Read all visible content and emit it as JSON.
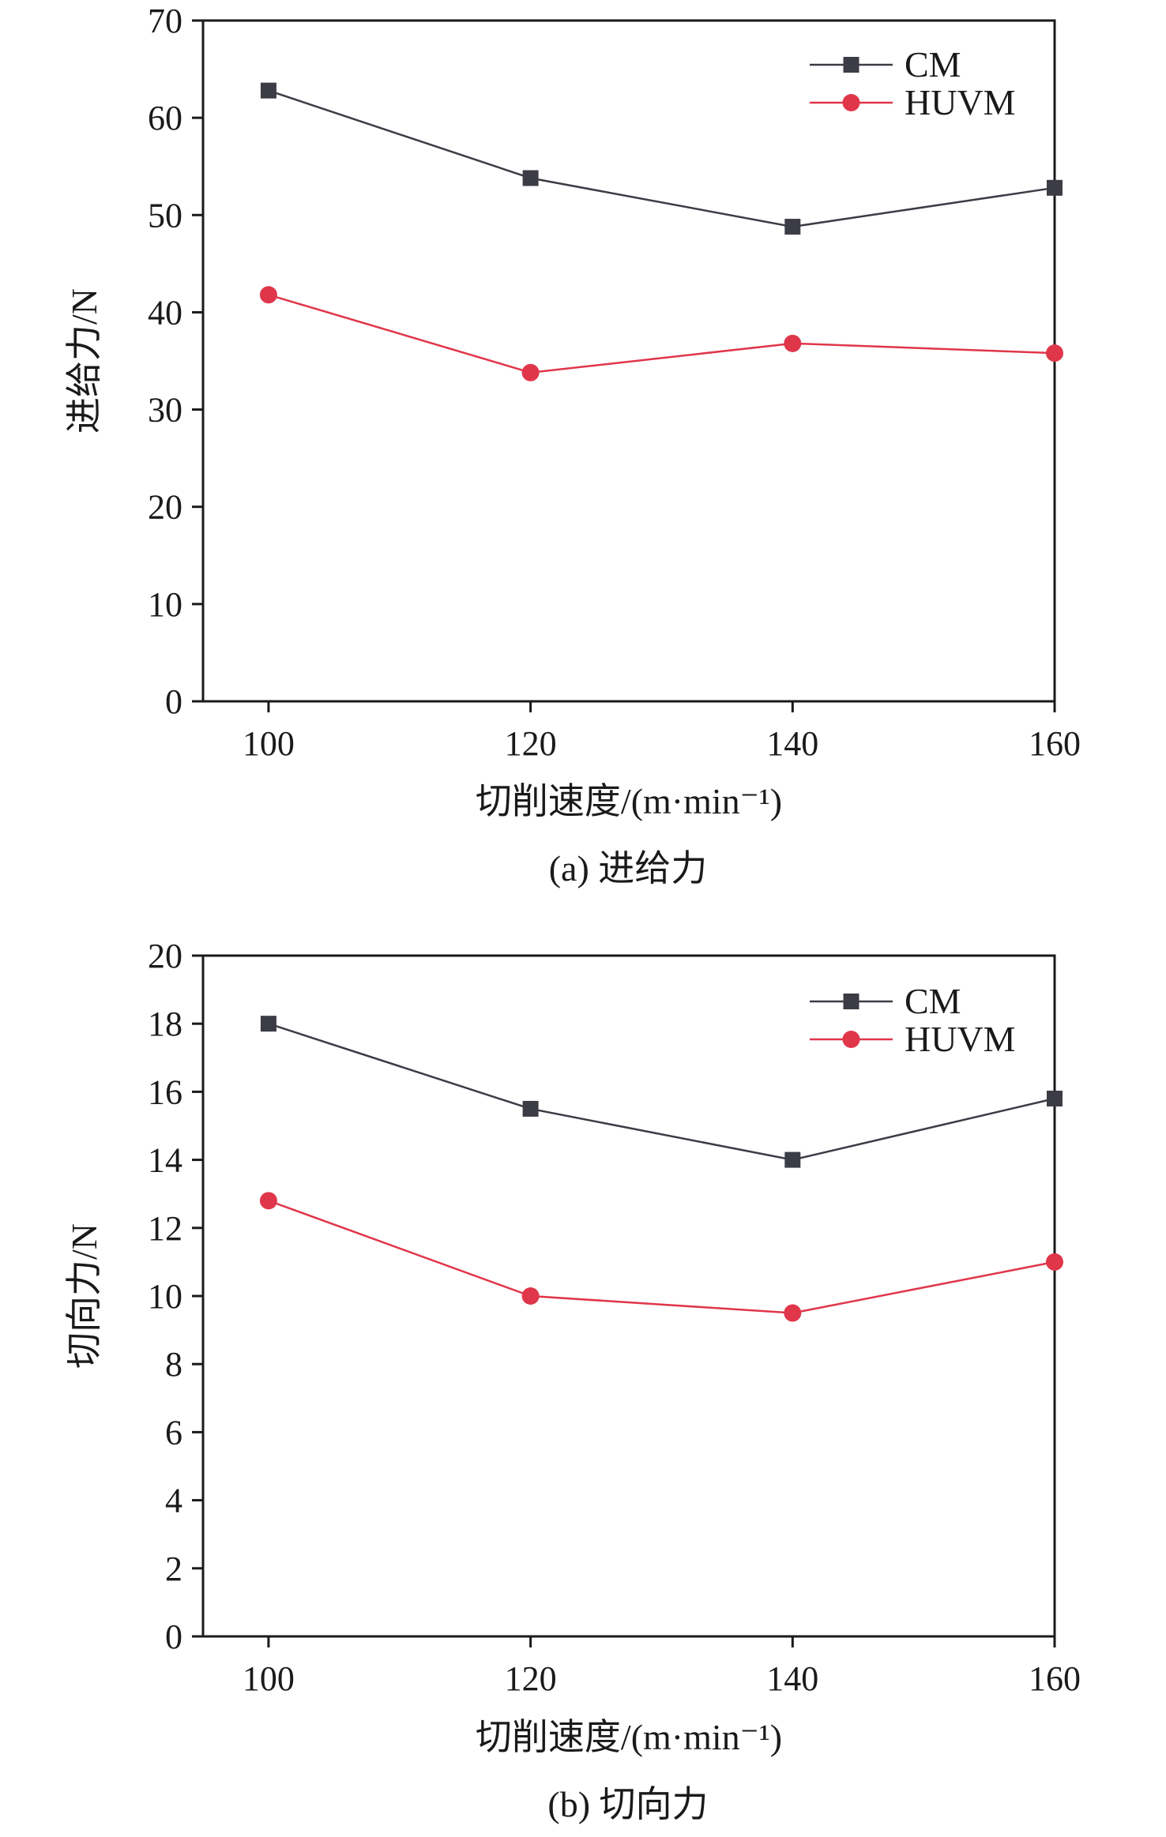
{
  "chart_data": [
    {
      "type": "line",
      "caption": "(a) 进给力",
      "xlabel": "切削速度/(m·min⁻¹)",
      "ylabel": "进给力/N",
      "x": [
        100,
        120,
        140,
        160
      ],
      "x_ticks": [
        100,
        120,
        140,
        160
      ],
      "y_ticks": [
        0,
        10,
        20,
        30,
        40,
        50,
        60,
        70
      ],
      "xlim": [
        95,
        160
      ],
      "ylim": [
        0,
        70
      ],
      "legend_position": "top-right",
      "grid": false,
      "series": [
        {
          "name": "CM",
          "values": [
            62.8,
            53.8,
            48.8,
            52.8
          ],
          "color": "#3c3c46",
          "marker": "square"
        },
        {
          "name": "HUVM",
          "values": [
            41.8,
            33.8,
            36.8,
            35.8
          ],
          "color": "#e0364a",
          "marker": "circle"
        }
      ]
    },
    {
      "type": "line",
      "caption": "(b) 切向力",
      "xlabel": "切削速度/(m·min⁻¹)",
      "ylabel": "切向力/N",
      "x": [
        100,
        120,
        140,
        160
      ],
      "x_ticks": [
        100,
        120,
        140,
        160
      ],
      "y_ticks": [
        0,
        2,
        4,
        6,
        8,
        10,
        12,
        14,
        16,
        18,
        20
      ],
      "xlim": [
        95,
        160
      ],
      "ylim": [
        0,
        20
      ],
      "legend_position": "top-right",
      "grid": false,
      "series": [
        {
          "name": "CM",
          "values": [
            18.0,
            15.5,
            14.0,
            15.8
          ],
          "color": "#3c3c46",
          "marker": "square"
        },
        {
          "name": "HUVM",
          "values": [
            12.8,
            10.0,
            9.5,
            11.0
          ],
          "color": "#e0364a",
          "marker": "circle"
        }
      ]
    }
  ]
}
